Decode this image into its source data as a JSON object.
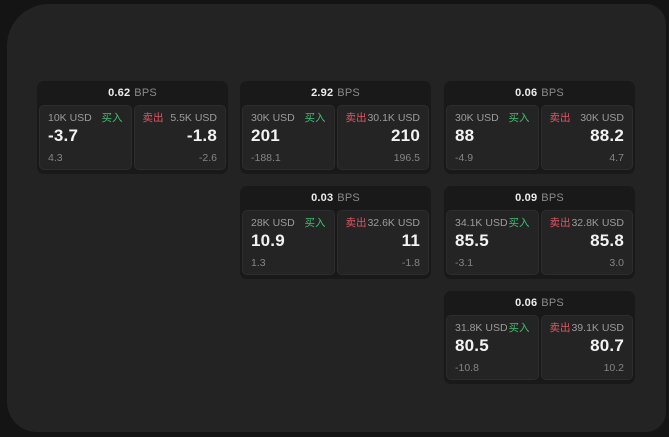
{
  "labels": {
    "buy": "买入",
    "sell": "卖出",
    "bps_unit": "BPS"
  },
  "colors": {
    "backdrop": "#141414",
    "surface": "#232323",
    "card_bg": "#191919",
    "panel_bg": "#242425",
    "buy_accent": "#3fbf72",
    "sell_accent": "#e05662",
    "primary_text": "#f2f2f2",
    "secondary_text": "#9c9c9c"
  },
  "cards": [
    {
      "bps": "0.62",
      "buy_size": "10K USD",
      "buy_price": "-3.7",
      "buy_delta": "4.3",
      "sell_size": "5.5K USD",
      "sell_price": "-1.8",
      "sell_delta": "-2.6"
    },
    {
      "bps": "2.92",
      "buy_size": "30K USD",
      "buy_price": "201",
      "buy_delta": "-188.1",
      "sell_size": "30.1K USD",
      "sell_price": "210",
      "sell_delta": "196.5"
    },
    {
      "bps": "0.06",
      "buy_size": "30K USD",
      "buy_price": "88",
      "buy_delta": "-4.9",
      "sell_size": "30K USD",
      "sell_price": "88.2",
      "sell_delta": "4.7"
    },
    {
      "bps": "0.03",
      "buy_size": "28K USD",
      "buy_price": "10.9",
      "buy_delta": "1.3",
      "sell_size": "32.6K USD",
      "sell_price": "11",
      "sell_delta": "-1.8"
    },
    {
      "bps": "0.09",
      "buy_size": "34.1K USD",
      "buy_price": "85.5",
      "buy_delta": "-3.1",
      "sell_size": "32.8K USD",
      "sell_price": "85.8",
      "sell_delta": "3.0"
    },
    {
      "bps": "0.06",
      "buy_size": "31.8K USD",
      "buy_price": "80.5",
      "buy_delta": "-10.8",
      "sell_size": "39.1K USD",
      "sell_price": "80.7",
      "sell_delta": "10.2"
    }
  ]
}
